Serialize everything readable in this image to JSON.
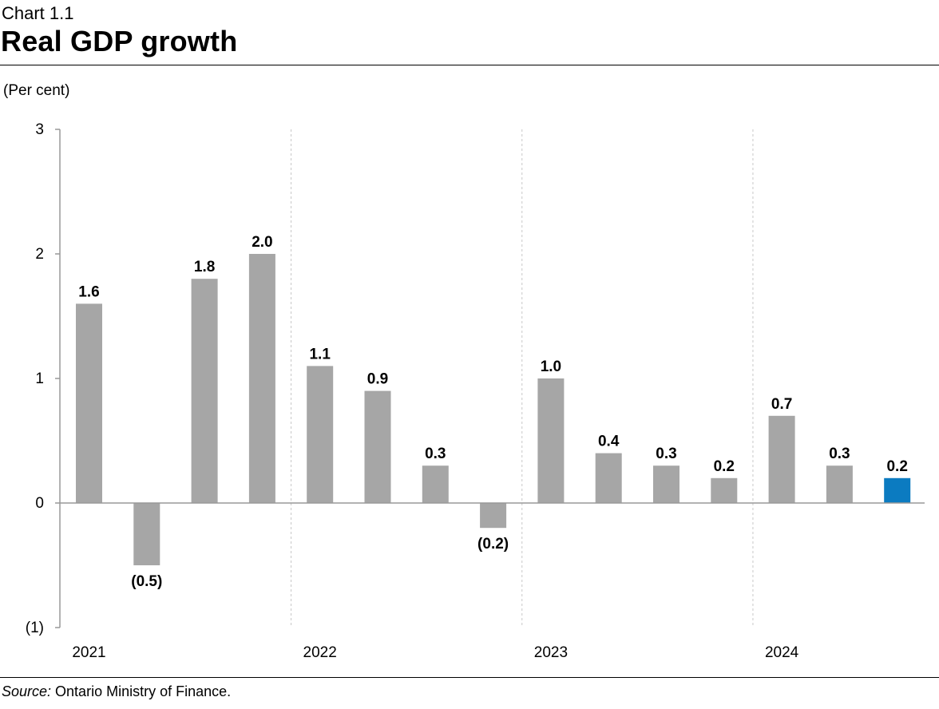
{
  "header": {
    "chart_label": "Chart 1.1",
    "title": "Real GDP growth",
    "unit_label": "(Per cent)"
  },
  "footer": {
    "source_label": "Source:",
    "source_text": " Ontario Ministry of Finance."
  },
  "colors": {
    "bar": "#a6a6a6",
    "highlight": "#0b7bc1",
    "axis": "#999999",
    "divider": "#c8c8c8"
  },
  "chart_data": {
    "type": "bar",
    "title": "Real GDP growth",
    "ylabel": "(Per cent)",
    "xlabel": "",
    "ylim": [
      -1,
      3
    ],
    "yticks": [
      -1,
      0,
      1,
      2,
      3
    ],
    "ytick_labels": [
      "(1)",
      "0",
      "1",
      "2",
      "3"
    ],
    "years": [
      "2021",
      "2022",
      "2023",
      "2024"
    ],
    "quarters_per_year": 4,
    "values": [
      1.6,
      -0.5,
      1.8,
      2.0,
      1.1,
      0.9,
      0.3,
      -0.2,
      1.0,
      0.4,
      0.3,
      0.2,
      0.7,
      0.3,
      0.2
    ],
    "value_labels": [
      "1.6",
      "(0.5)",
      "1.8",
      "2.0",
      "1.1",
      "0.9",
      "0.3",
      "(0.2)",
      "1.0",
      "0.4",
      "0.3",
      "0.2",
      "0.7",
      "0.3",
      "0.2"
    ],
    "highlight_index": 14,
    "grid": false
  }
}
